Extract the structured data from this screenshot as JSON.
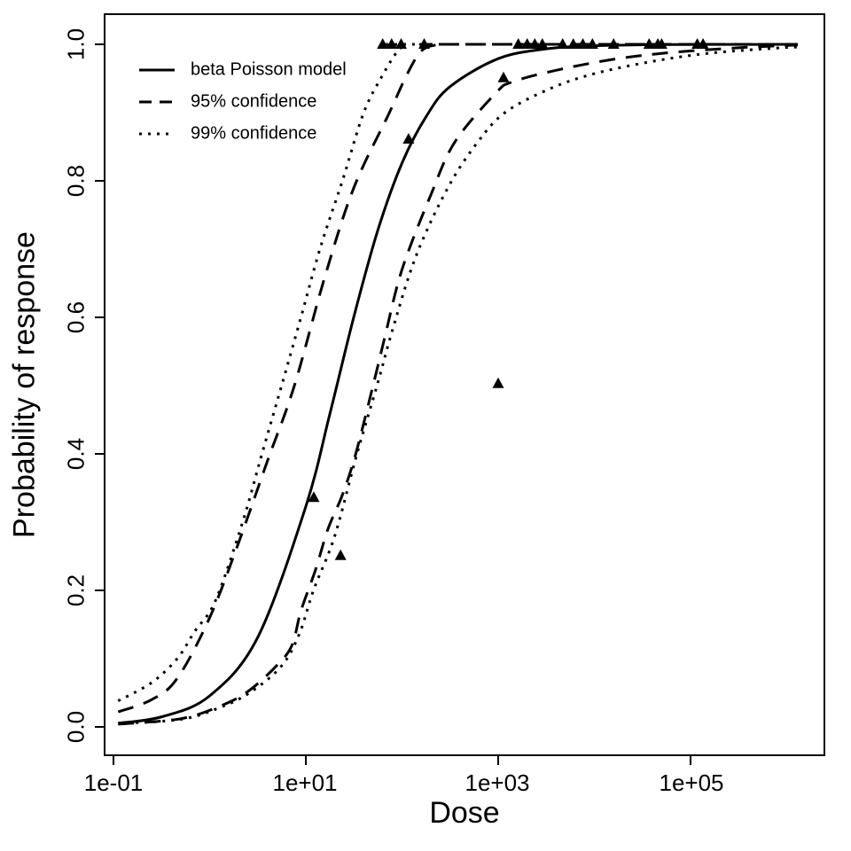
{
  "chart_data": {
    "type": "line",
    "title": "",
    "xlabel": "Dose",
    "ylabel": "Probability of response",
    "x_scale": "log10",
    "x_tick_labels": [
      "1e-01",
      "1e+01",
      "1e+03",
      "1e+05"
    ],
    "x_tick_values": [
      0.1,
      10,
      1000,
      100000
    ],
    "y_tick_labels": [
      "0.0",
      "0.2",
      "0.4",
      "0.6",
      "0.8",
      "1.0"
    ],
    "y_tick_values": [
      0,
      0.2,
      0.4,
      0.6,
      0.8,
      1.0
    ],
    "xlim_log10": [
      -1.09,
      6.4
    ],
    "ylim": [
      0.0,
      1.0
    ],
    "grid": false,
    "background_color": "#ffffff",
    "ink_color": "#000000",
    "legend_position": "top-left-inside",
    "legend": [
      {
        "label": "beta Poisson model",
        "style": "solid"
      },
      {
        "label": "95% confidence",
        "style": "dashed"
      },
      {
        "label": "99% confidence",
        "style": "dotted"
      }
    ],
    "series": [
      {
        "name": "beta Poisson model",
        "style": "solid",
        "points": [
          [
            0.112,
            0.0053
          ],
          [
            0.32,
            0.015
          ],
          [
            1,
            0.0454
          ],
          [
            3.16,
            0.131
          ],
          [
            10,
            0.323
          ],
          [
            17.8,
            0.459
          ],
          [
            31.6,
            0.601
          ],
          [
            56.2,
            0.728
          ],
          [
            100,
            0.826
          ],
          [
            178,
            0.894
          ],
          [
            316,
            0.938
          ],
          [
            1000,
            0.979
          ],
          [
            3160,
            0.9934
          ],
          [
            10000,
            0.9979
          ],
          [
            31600,
            0.9993
          ],
          [
            100000,
            0.9998
          ],
          [
            316000,
            0.9999
          ],
          [
            1300000,
            1.0
          ]
        ]
      },
      {
        "name": "95% confidence upper",
        "style": "dashed",
        "points": [
          [
            0.112,
            0.022
          ],
          [
            0.25,
            0.04
          ],
          [
            0.46,
            0.071
          ],
          [
            1,
            0.16
          ],
          [
            2,
            0.27
          ],
          [
            4,
            0.39
          ],
          [
            7.6,
            0.5
          ],
          [
            15.8,
            0.66
          ],
          [
            31.6,
            0.79
          ],
          [
            74,
            0.9
          ],
          [
            112,
            0.955
          ],
          [
            158,
            0.99
          ],
          [
            224,
            0.999
          ],
          [
            316,
            1.0
          ],
          [
            1300000,
            1.0
          ]
        ]
      },
      {
        "name": "95% confidence lower",
        "style": "dashed",
        "points": [
          [
            0.112,
            0.004
          ],
          [
            0.5,
            0.012
          ],
          [
            1.26,
            0.03
          ],
          [
            2.5,
            0.052
          ],
          [
            5,
            0.09
          ],
          [
            7.2,
            0.12
          ],
          [
            8.9,
            0.17
          ],
          [
            12.6,
            0.23
          ],
          [
            17,
            0.29
          ],
          [
            24,
            0.34
          ],
          [
            33,
            0.4
          ],
          [
            50,
            0.5
          ],
          [
            66,
            0.57
          ],
          [
            100,
            0.67
          ],
          [
            200,
            0.78
          ],
          [
            355,
            0.857
          ],
          [
            950,
            0.929
          ],
          [
            1410,
            0.945
          ],
          [
            4000,
            0.962
          ],
          [
            15800,
            0.978
          ],
          [
            63000,
            0.988
          ],
          [
            316000,
            0.995
          ],
          [
            1300000,
            0.999
          ]
        ]
      },
      {
        "name": "99% confidence upper",
        "style": "dotted",
        "points": [
          [
            0.112,
            0.038
          ],
          [
            0.25,
            0.065
          ],
          [
            0.46,
            0.1
          ],
          [
            0.7,
            0.14
          ],
          [
            1.15,
            0.185
          ],
          [
            2.2,
            0.3
          ],
          [
            3.5,
            0.4
          ],
          [
            5.6,
            0.5
          ],
          [
            8.9,
            0.6
          ],
          [
            14,
            0.7
          ],
          [
            24,
            0.8
          ],
          [
            40,
            0.9
          ],
          [
            63,
            0.955
          ],
          [
            90,
            0.99
          ],
          [
            110,
            0.998
          ],
          [
            126,
            1.0
          ],
          [
            1300000,
            1.0
          ]
        ]
      },
      {
        "name": "99% confidence lower",
        "style": "dotted",
        "points": [
          [
            0.112,
            0.005
          ],
          [
            0.5,
            0.011
          ],
          [
            1.26,
            0.028
          ],
          [
            2.6,
            0.05
          ],
          [
            5.5,
            0.088
          ],
          [
            8.5,
            0.135
          ],
          [
            12,
            0.2
          ],
          [
            20,
            0.28
          ],
          [
            34,
            0.4
          ],
          [
            55,
            0.5
          ],
          [
            79,
            0.58
          ],
          [
            140,
            0.69
          ],
          [
            300,
            0.79
          ],
          [
            600,
            0.855
          ],
          [
            1175,
            0.9
          ],
          [
            3460,
            0.935
          ],
          [
            10000,
            0.957
          ],
          [
            40000,
            0.975
          ],
          [
            158000,
            0.987
          ],
          [
            692000,
            0.994
          ],
          [
            1300000,
            0.996
          ]
        ]
      }
    ],
    "observations": {
      "marker": "filled-triangle-up",
      "points": [
        [
          12.1,
          0.336
        ],
        [
          23,
          0.251
        ],
        [
          117,
          0.861
        ],
        [
          1000,
          0.503
        ],
        [
          1135,
          0.951
        ],
        [
          63,
          1
        ],
        [
          78,
          1
        ],
        [
          98,
          1
        ],
        [
          170,
          1
        ],
        [
          1620,
          1
        ],
        [
          2000,
          1
        ],
        [
          2400,
          1
        ],
        [
          2880,
          1
        ],
        [
          4680,
          1
        ],
        [
          6030,
          1
        ],
        [
          7590,
          1
        ],
        [
          9550,
          1
        ],
        [
          15850,
          1
        ],
        [
          37150,
          1
        ],
        [
          45700,
          1
        ],
        [
          50100,
          1
        ],
        [
          117500,
          1
        ],
        [
          135000,
          1
        ]
      ]
    }
  }
}
